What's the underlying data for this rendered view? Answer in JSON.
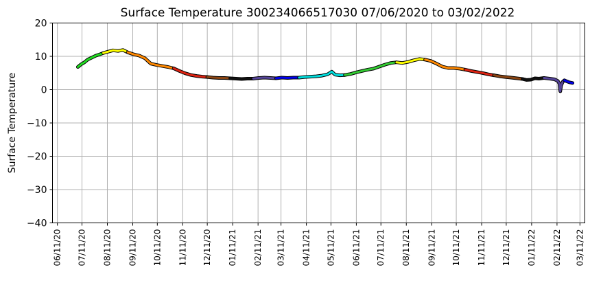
{
  "chart_data": {
    "type": "line",
    "title": "Surface Temperature 300234066517030  07/06/2020 to 03/02/2022",
    "xlabel": "",
    "ylabel": "Surface Temperature",
    "ylim": [
      -40,
      20
    ],
    "yticks": [
      20,
      10,
      0,
      -10,
      -20,
      -30,
      -40
    ],
    "xlim": [
      "2020-06-05",
      "2022-03-17"
    ],
    "xticks": [
      "2020-06-11",
      "2020-07-11",
      "2020-08-11",
      "2020-09-11",
      "2020-10-11",
      "2020-11-11",
      "2020-12-11",
      "2021-01-11",
      "2021-02-11",
      "2021-03-11",
      "2021-04-11",
      "2021-05-11",
      "2021-06-11",
      "2021-07-11",
      "2021-08-11",
      "2021-09-11",
      "2021-10-11",
      "2021-11-11",
      "2021-12-11",
      "2022-01-11",
      "2022-02-11",
      "2022-03-11"
    ],
    "xtick_labels": [
      "06/11/20",
      "07/11/20",
      "08/11/20",
      "09/11/20",
      "10/11/20",
      "11/11/20",
      "12/11/20",
      "01/11/21",
      "02/11/21",
      "03/11/21",
      "04/11/21",
      "05/11/21",
      "06/11/21",
      "07/11/21",
      "08/11/21",
      "09/11/21",
      "10/11/21",
      "11/11/21",
      "12/11/21",
      "01/11/22",
      "02/11/22",
      "03/11/22"
    ],
    "grid": true,
    "legend": "none",
    "series_note": "",
    "segments": [
      {
        "color": "#22dd22",
        "points": [
          [
            "2020-07-06",
            6.8
          ],
          [
            "2020-07-10",
            7.6
          ],
          [
            "2020-07-14",
            8.2
          ],
          [
            "2020-07-18",
            9.0
          ],
          [
            "2020-07-23",
            9.6
          ],
          [
            "2020-07-28",
            10.2
          ],
          [
            "2020-08-02",
            10.6
          ],
          [
            "2020-08-06",
            11.0
          ]
        ]
      },
      {
        "color": "#ffff00",
        "points": [
          [
            "2020-08-06",
            11.0
          ],
          [
            "2020-08-12",
            11.4
          ],
          [
            "2020-08-18",
            11.8
          ],
          [
            "2020-08-24",
            11.6
          ],
          [
            "2020-08-30",
            11.9
          ],
          [
            "2020-09-05",
            11.2
          ]
        ]
      },
      {
        "color": "#ff8800",
        "points": [
          [
            "2020-09-05",
            11.2
          ],
          [
            "2020-09-12",
            10.6
          ],
          [
            "2020-09-19",
            10.2
          ],
          [
            "2020-09-26",
            9.4
          ],
          [
            "2020-10-03",
            7.8
          ],
          [
            "2020-10-10",
            7.4
          ],
          [
            "2020-10-17",
            7.1
          ],
          [
            "2020-10-24",
            6.8
          ],
          [
            "2020-10-31",
            6.4
          ]
        ]
      },
      {
        "color": "#dd2211",
        "points": [
          [
            "2020-10-31",
            6.4
          ],
          [
            "2020-11-07",
            5.6
          ],
          [
            "2020-11-14",
            4.9
          ],
          [
            "2020-11-21",
            4.4
          ],
          [
            "2020-11-28",
            4.1
          ],
          [
            "2020-12-05",
            3.9
          ],
          [
            "2020-12-11",
            3.8
          ]
        ]
      },
      {
        "color": "#8b4513",
        "points": [
          [
            "2020-12-11",
            3.8
          ],
          [
            "2020-12-18",
            3.6
          ],
          [
            "2020-12-25",
            3.5
          ],
          [
            "2021-01-01",
            3.5
          ],
          [
            "2021-01-08",
            3.4
          ]
        ]
      },
      {
        "color": "#111111",
        "points": [
          [
            "2021-01-08",
            3.4
          ],
          [
            "2021-01-15",
            3.3
          ],
          [
            "2021-01-22",
            3.2
          ],
          [
            "2021-01-29",
            3.3
          ],
          [
            "2021-02-05",
            3.3
          ]
        ]
      },
      {
        "color": "#554499",
        "points": [
          [
            "2021-02-05",
            3.3
          ],
          [
            "2021-02-12",
            3.5
          ],
          [
            "2021-02-19",
            3.6
          ],
          [
            "2021-02-26",
            3.5
          ],
          [
            "2021-03-05",
            3.4
          ]
        ]
      },
      {
        "color": "#0000ee",
        "points": [
          [
            "2021-03-05",
            3.4
          ],
          [
            "2021-03-12",
            3.6
          ],
          [
            "2021-03-19",
            3.5
          ],
          [
            "2021-03-26",
            3.6
          ],
          [
            "2021-04-02",
            3.6
          ]
        ]
      },
      {
        "color": "#00dddd",
        "points": [
          [
            "2021-04-02",
            3.6
          ],
          [
            "2021-04-09",
            3.8
          ],
          [
            "2021-04-16",
            3.9
          ],
          [
            "2021-04-23",
            4.0
          ],
          [
            "2021-04-30",
            4.2
          ],
          [
            "2021-05-07",
            4.6
          ],
          [
            "2021-05-12",
            5.4
          ],
          [
            "2021-05-16",
            4.5
          ],
          [
            "2021-05-22",
            4.3
          ],
          [
            "2021-05-28",
            4.4
          ]
        ]
      },
      {
        "color": "#33cc33",
        "points": [
          [
            "2021-05-28",
            4.4
          ],
          [
            "2021-06-04",
            4.7
          ],
          [
            "2021-06-11",
            5.2
          ],
          [
            "2021-06-18",
            5.6
          ],
          [
            "2021-06-25",
            6.0
          ],
          [
            "2021-07-02",
            6.3
          ],
          [
            "2021-07-09",
            6.9
          ],
          [
            "2021-07-16",
            7.5
          ],
          [
            "2021-07-23",
            8.0
          ],
          [
            "2021-07-30",
            8.2
          ]
        ]
      },
      {
        "color": "#ffff00",
        "points": [
          [
            "2021-07-30",
            8.2
          ],
          [
            "2021-08-06",
            8.0
          ],
          [
            "2021-08-13",
            8.3
          ],
          [
            "2021-08-20",
            8.8
          ],
          [
            "2021-08-27",
            9.2
          ],
          [
            "2021-09-03",
            9.0
          ]
        ]
      },
      {
        "color": "#ff8800",
        "points": [
          [
            "2021-09-03",
            9.0
          ],
          [
            "2021-09-10",
            8.6
          ],
          [
            "2021-09-17",
            7.8
          ],
          [
            "2021-09-24",
            6.9
          ],
          [
            "2021-10-01",
            6.5
          ],
          [
            "2021-10-08",
            6.5
          ],
          [
            "2021-10-15",
            6.3
          ],
          [
            "2021-10-22",
            6.0
          ]
        ]
      },
      {
        "color": "#dd2211",
        "points": [
          [
            "2021-10-22",
            6.0
          ],
          [
            "2021-10-29",
            5.6
          ],
          [
            "2021-11-05",
            5.3
          ],
          [
            "2021-11-12",
            5.0
          ],
          [
            "2021-11-19",
            4.6
          ],
          [
            "2021-11-26",
            4.3
          ]
        ]
      },
      {
        "color": "#8b4513",
        "points": [
          [
            "2021-11-26",
            4.3
          ],
          [
            "2021-12-03",
            4.0
          ],
          [
            "2021-12-10",
            3.8
          ],
          [
            "2021-12-17",
            3.6
          ],
          [
            "2021-12-24",
            3.4
          ],
          [
            "2021-12-31",
            3.2
          ]
        ]
      },
      {
        "color": "#111111",
        "points": [
          [
            "2021-12-31",
            3.2
          ],
          [
            "2022-01-05",
            2.9
          ],
          [
            "2022-01-10",
            3.0
          ],
          [
            "2022-01-15",
            3.4
          ],
          [
            "2022-01-20",
            3.3
          ],
          [
            "2022-01-26",
            3.5
          ]
        ]
      },
      {
        "color": "#554499",
        "points": [
          [
            "2022-01-26",
            3.5
          ],
          [
            "2022-02-02",
            3.3
          ],
          [
            "2022-02-08",
            3.1
          ],
          [
            "2022-02-12",
            2.6
          ],
          [
            "2022-02-14",
            1.8
          ],
          [
            "2022-02-15",
            -0.5
          ],
          [
            "2022-02-16",
            1.2
          ],
          [
            "2022-02-18",
            2.4
          ],
          [
            "2022-02-20",
            2.8
          ]
        ]
      },
      {
        "color": "#0000ee",
        "points": [
          [
            "2022-02-20",
            2.8
          ],
          [
            "2022-02-23",
            2.5
          ],
          [
            "2022-02-26",
            2.2
          ],
          [
            "2022-03-02",
            2.0
          ]
        ]
      }
    ]
  }
}
